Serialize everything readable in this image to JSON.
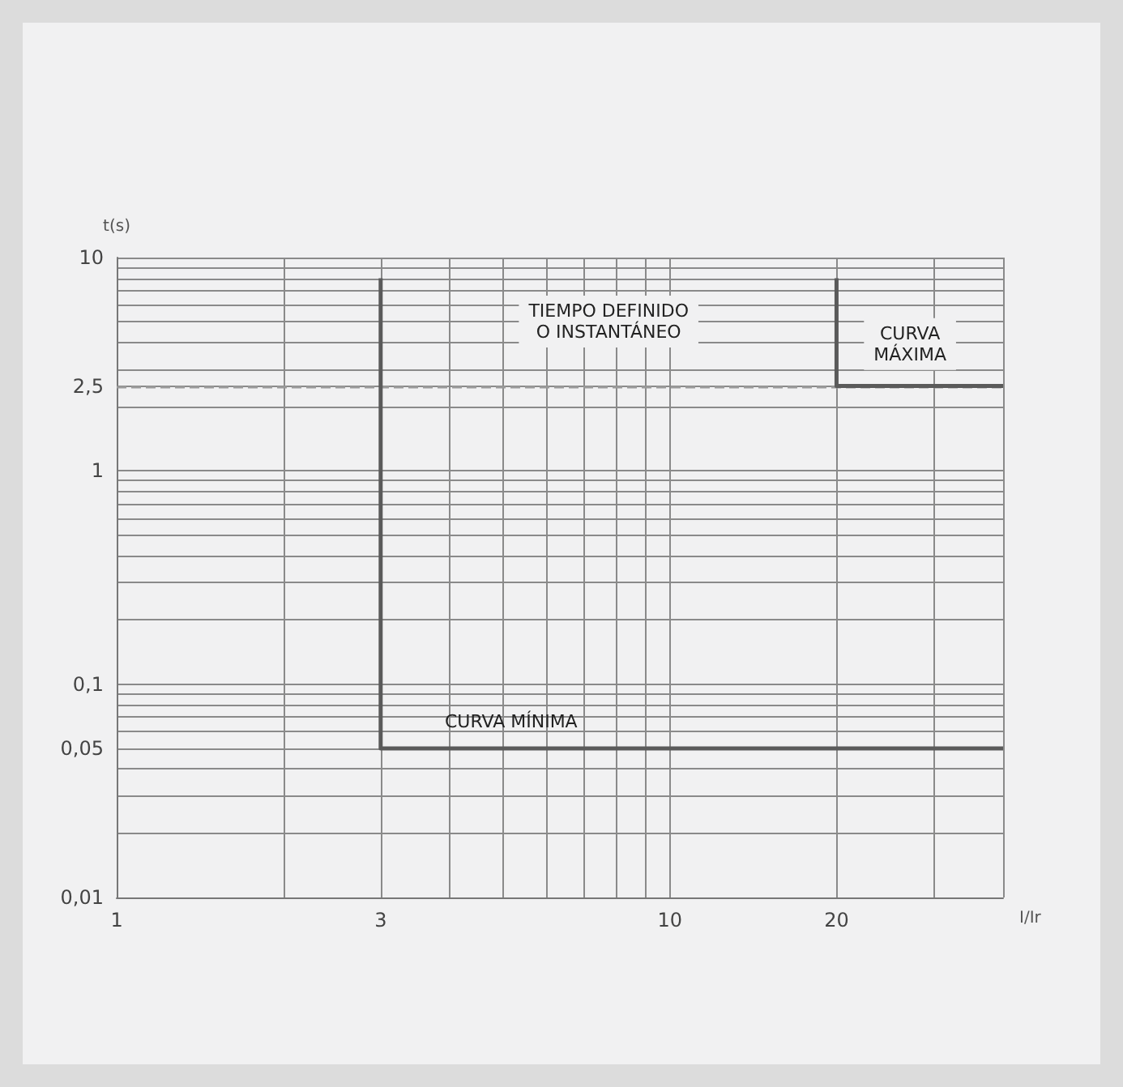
{
  "chart_data": {
    "type": "line",
    "xlabel": "I/Ir",
    "ylabel": "t(s)",
    "log": "xy",
    "grid": true,
    "marker": "none",
    "line_style": "solid",
    "xlim": [
      1,
      40
    ],
    "xticks": [
      1,
      {
        "value": 2,
        "label": null
      },
      3,
      {
        "value": 4,
        "label": null
      },
      {
        "value": 5,
        "label": null
      },
      {
        "value": 6,
        "label": null
      },
      {
        "value": 7,
        "label": null
      },
      {
        "value": 8,
        "label": null
      },
      {
        "value": 9,
        "label": null
      },
      10,
      20,
      {
        "value": 30,
        "label": null
      },
      {
        "value": 40,
        "label": null
      }
    ],
    "ylim": [
      0.01,
      10
    ],
    "yticks": [
      {
        "value": 0.01,
        "label": "0,01"
      },
      {
        "value": 0.02,
        "label": null
      },
      {
        "value": 0.03,
        "label": null
      },
      {
        "value": 0.04,
        "label": null
      },
      {
        "value": 0.05,
        "label": "0,05"
      },
      {
        "value": 0.06,
        "label": null
      },
      {
        "value": 0.07,
        "label": null
      },
      {
        "value": 0.08,
        "label": null
      },
      {
        "value": 0.09,
        "label": null
      },
      {
        "value": 0.1,
        "label": "0,1"
      },
      {
        "value": 0.2,
        "label": null
      },
      {
        "value": 0.3,
        "label": null
      },
      {
        "value": 0.4,
        "label": null
      },
      {
        "value": 0.5,
        "label": null
      },
      {
        "value": 0.6,
        "label": null
      },
      {
        "value": 0.7,
        "label": null
      },
      {
        "value": 0.8,
        "label": null
      },
      {
        "value": 0.9,
        "label": null
      },
      1,
      {
        "value": 2,
        "label": null
      },
      {
        "value": 2.5,
        "label": "2,5"
      },
      {
        "value": 3,
        "label": null
      },
      {
        "value": 4,
        "label": null
      },
      {
        "value": 5,
        "label": null
      },
      {
        "value": 6,
        "label": null
      },
      {
        "value": 7,
        "label": null
      },
      {
        "value": 8,
        "label": null
      },
      {
        "value": 9,
        "label": null
      },
      10
    ],
    "series": [
      {
        "color": "#5a5a5a",
        "x": [
          3,
          3,
          40
        ],
        "values": [
          8,
          0.05,
          0.05
        ]
      },
      {
        "color": "#5a5a5a",
        "x": [
          20,
          20,
          40
        ],
        "values": [
          8,
          2.5,
          2.5
        ]
      }
    ],
    "ref_lines": [
      {
        "axis": "y",
        "value": 2.5,
        "color": "#9a9a9a",
        "line_style": "dashed"
      }
    ],
    "annotations": [
      "TIEMPO DEFINIDO\nO INSTANTÁNEO",
      "CURVA\nMÁXIMA",
      "CURVA MÍNIMA"
    ]
  }
}
